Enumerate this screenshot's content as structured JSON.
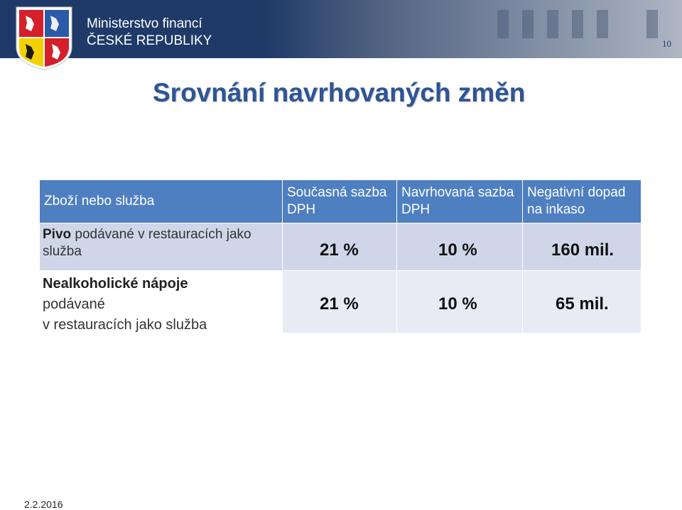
{
  "header": {
    "ministry_line1": "Ministerstvo financí",
    "ministry_line2": "ČESKÉ REPUBLIKY",
    "slide_number": "10",
    "colors": {
      "band": "#1f3a68",
      "title": "#2e5596",
      "table_header": "#4e7fc0",
      "row1": "#cfd6e8",
      "row2": "#e8ebf4"
    }
  },
  "title": "Srovnání navrhovaných změn",
  "table": {
    "headers": [
      "Zboží nebo služba",
      "Současná sazba DPH",
      "Navrhovaná sazba DPH",
      "Negativní dopad na inkaso"
    ],
    "rows": [
      {
        "item_bold": "Pivo",
        "item_rest": " podávané v restauracích jako služba",
        "current": "21 %",
        "proposed": "10 %",
        "impact": "160 mil."
      },
      {
        "item_bold": "Nealkoholické nápoje",
        "item_line2": "podávané",
        "item_line3": "v restauracích jako služba",
        "current": "21 %",
        "proposed": "10 %",
        "impact": "65 mil."
      }
    ]
  },
  "footer": {
    "date": "2.2.2016"
  },
  "icons": [
    "state-coat-of-arms-icon"
  ]
}
